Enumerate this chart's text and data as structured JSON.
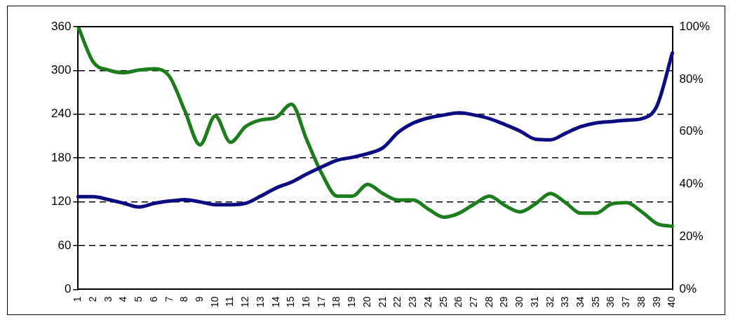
{
  "chart_data": {
    "type": "line",
    "categories": [
      "1",
      "2",
      "3",
      "4",
      "5",
      "6",
      "7",
      "8",
      "9",
      "10",
      "11",
      "12",
      "13",
      "14",
      "15",
      "16",
      "17",
      "18",
      "19",
      "20",
      "21",
      "22",
      "23",
      "24",
      "25",
      "26",
      "27",
      "28",
      "29",
      "30",
      "31",
      "32",
      "33",
      "34",
      "35",
      "36",
      "37",
      "38",
      "39",
      "40"
    ],
    "series": [
      {
        "color": "#0b0b82",
        "values": [
          127,
          127,
          123,
          118,
          113,
          118,
          121,
          123,
          120,
          116,
          116,
          118,
          128,
          139,
          147,
          158,
          168,
          177,
          181,
          186,
          194,
          215,
          228,
          235,
          239,
          242,
          239,
          234,
          226,
          217,
          206,
          205,
          214,
          223,
          228,
          230,
          232,
          234,
          252,
          324
        ]
      },
      {
        "color": "#1b7d1b",
        "axis": "y2",
        "values": [
          100,
          86.5,
          83.5,
          82.5,
          83.5,
          84,
          81,
          68,
          55,
          66,
          56,
          62,
          64.5,
          65.5,
          70.5,
          57,
          44,
          35.5,
          35.5,
          40,
          36.5,
          34,
          34,
          30.5,
          27.5,
          29,
          32.5,
          35.5,
          32,
          29.5,
          32.5,
          36.5,
          33,
          29,
          29,
          32.5,
          33,
          29.5,
          25,
          24
        ]
      }
    ],
    "ylim": [
      0,
      360
    ],
    "yticks": [
      0,
      60,
      120,
      180,
      240,
      300,
      360
    ],
    "y2lim": [
      0,
      100
    ],
    "y2ticks": [
      {
        "value": 0,
        "label": "0%"
      },
      {
        "value": 20,
        "label": "20%"
      },
      {
        "value": 40,
        "label": "40%"
      },
      {
        "value": 60,
        "label": "60%"
      },
      {
        "value": 80,
        "label": "80%"
      },
      {
        "value": 100,
        "label": "100%"
      }
    ],
    "grid": "y",
    "legend": false,
    "marker": "none",
    "line_style": "solid"
  }
}
